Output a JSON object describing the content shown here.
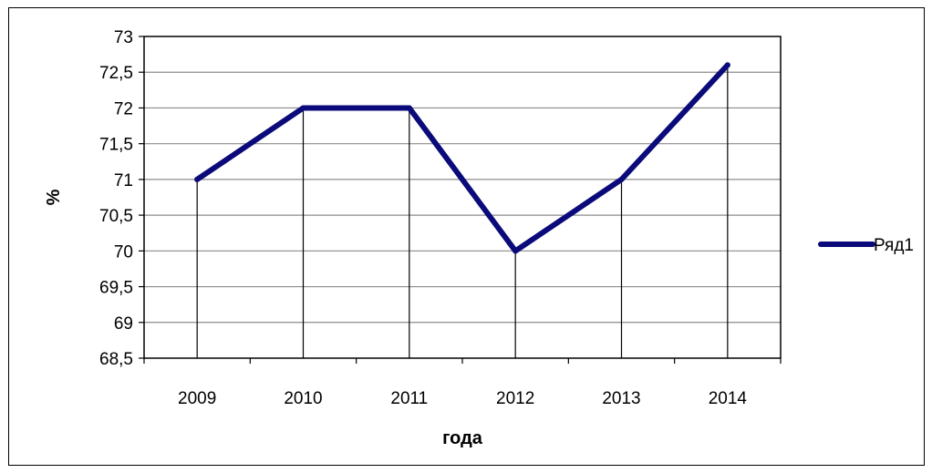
{
  "chart_data": {
    "type": "line",
    "title": "",
    "xlabel": "года",
    "ylabel": "%",
    "categories": [
      "2009",
      "2010",
      "2011",
      "2012",
      "2013",
      "2014"
    ],
    "series": [
      {
        "name": "Ряд1",
        "values": [
          71,
          72,
          72,
          70,
          71,
          72.6
        ],
        "color": "#0A0A7A"
      }
    ],
    "ylim": [
      68.5,
      73
    ],
    "ytick_values": [
      68.5,
      69,
      69.5,
      70,
      70.5,
      71,
      71.5,
      72,
      72.5,
      73
    ],
    "ytick_labels": [
      "68,5",
      "69",
      "69,5",
      "70",
      "70,5",
      "71",
      "71,5",
      "72",
      "72,5",
      "73"
    ],
    "grid": true,
    "drop_lines": true,
    "legend_position": "right"
  }
}
